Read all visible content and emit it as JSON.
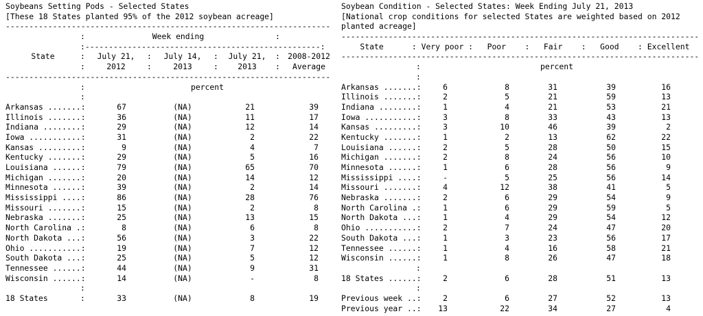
{
  "pods": {
    "title": "Soybeans Setting Pods - Selected States",
    "subtitle": "[These 18 States planted 95% of the 2012 soybean acreage]",
    "group_header": "Week ending",
    "col_state": "State",
    "col1": [
      "July 21,",
      "2012"
    ],
    "col2": [
      "July 14,",
      "2013"
    ],
    "col3": [
      "July 21,",
      "2013"
    ],
    "col4": [
      "2008-2012",
      "Average"
    ],
    "unit": "percent",
    "rows": [
      {
        "state": "Arkansas .......:",
        "v": [
          "67",
          "(NA)",
          "21",
          "39"
        ]
      },
      {
        "state": "Illinois .......:",
        "v": [
          "36",
          "(NA)",
          "11",
          "17"
        ]
      },
      {
        "state": "Indiana ........:",
        "v": [
          "29",
          "(NA)",
          "12",
          "14"
        ]
      },
      {
        "state": "Iowa ...........:",
        "v": [
          "31",
          "(NA)",
          "2",
          "22"
        ]
      },
      {
        "state": "Kansas .........:",
        "v": [
          "9",
          "(NA)",
          "4",
          "7"
        ]
      },
      {
        "state": "Kentucky .......:",
        "v": [
          "29",
          "(NA)",
          "5",
          "16"
        ]
      },
      {
        "state": "Louisiana ......:",
        "v": [
          "79",
          "(NA)",
          "65",
          "70"
        ]
      },
      {
        "state": "Michigan .......:",
        "v": [
          "20",
          "(NA)",
          "14",
          "12"
        ]
      },
      {
        "state": "Minnesota ......:",
        "v": [
          "39",
          "(NA)",
          "2",
          "14"
        ]
      },
      {
        "state": "Mississippi ....:",
        "v": [
          "86",
          "(NA)",
          "28",
          "76"
        ]
      },
      {
        "state": "Missouri .......:",
        "v": [
          "15",
          "(NA)",
          "2",
          "8"
        ]
      },
      {
        "state": "Nebraska .......:",
        "v": [
          "25",
          "(NA)",
          "13",
          "15"
        ]
      },
      {
        "state": "North Carolina .:",
        "v": [
          "8",
          "(NA)",
          "6",
          "8"
        ]
      },
      {
        "state": "North Dakota ...:",
        "v": [
          "56",
          "(NA)",
          "3",
          "22"
        ]
      },
      {
        "state": "Ohio ...........:",
        "v": [
          "19",
          "(NA)",
          "7",
          "12"
        ]
      },
      {
        "state": "South Dakota ...:",
        "v": [
          "25",
          "(NA)",
          "5",
          "12"
        ]
      },
      {
        "state": "Tennessee ......:",
        "v": [
          "44",
          "(NA)",
          "9",
          "31"
        ]
      },
      {
        "state": "Wisconsin ......:",
        "v": [
          "14",
          "(NA)",
          "-",
          "8"
        ]
      }
    ],
    "total": {
      "state": "18 States",
      "v": [
        "33",
        "(NA)",
        "8",
        "19"
      ]
    }
  },
  "condition": {
    "title": "Soybean Condition - Selected States: Week Ending July 21, 2013",
    "subtitle": "[National crop conditions for selected States are weighted based on 2012 planted acreage]",
    "header": "    State      : Very poor :   Poor    :   Fair    :   Good    : Excellent",
    "unit": "percent",
    "rows": [
      {
        "state": "Arkansas .......:",
        "v": [
          "6",
          "8",
          "31",
          "39",
          "16"
        ]
      },
      {
        "state": "Illinois .......:",
        "v": [
          "2",
          "5",
          "21",
          "59",
          "13"
        ]
      },
      {
        "state": "Indiana ........:",
        "v": [
          "1",
          "4",
          "21",
          "53",
          "21"
        ]
      },
      {
        "state": "Iowa ...........:",
        "v": [
          "3",
          "8",
          "33",
          "43",
          "13"
        ]
      },
      {
        "state": "Kansas .........:",
        "v": [
          "3",
          "10",
          "46",
          "39",
          "2"
        ]
      },
      {
        "state": "Kentucky .......:",
        "v": [
          "1",
          "2",
          "13",
          "62",
          "22"
        ]
      },
      {
        "state": "Louisiana ......:",
        "v": [
          "2",
          "5",
          "28",
          "50",
          "15"
        ]
      },
      {
        "state": "Michigan .......:",
        "v": [
          "2",
          "8",
          "24",
          "56",
          "10"
        ]
      },
      {
        "state": "Minnesota ......:",
        "v": [
          "1",
          "6",
          "28",
          "56",
          "9"
        ]
      },
      {
        "state": "Mississippi ....:",
        "v": [
          "-",
          "5",
          "25",
          "56",
          "14"
        ]
      },
      {
        "state": "Missouri .......:",
        "v": [
          "4",
          "12",
          "38",
          "41",
          "5"
        ]
      },
      {
        "state": "Nebraska .......:",
        "v": [
          "2",
          "6",
          "29",
          "54",
          "9"
        ]
      },
      {
        "state": "North Carolina .:",
        "v": [
          "1",
          "6",
          "29",
          "59",
          "5"
        ]
      },
      {
        "state": "North Dakota ...:",
        "v": [
          "1",
          "4",
          "29",
          "54",
          "12"
        ]
      },
      {
        "state": "Ohio ...........:",
        "v": [
          "2",
          "7",
          "24",
          "47",
          "20"
        ]
      },
      {
        "state": "South Dakota ...:",
        "v": [
          "1",
          "3",
          "23",
          "56",
          "17"
        ]
      },
      {
        "state": "Tennessee ......:",
        "v": [
          "1",
          "4",
          "16",
          "58",
          "21"
        ]
      },
      {
        "state": "Wisconsin ......:",
        "v": [
          "1",
          "8",
          "26",
          "47",
          "18"
        ]
      }
    ],
    "totals": [
      {
        "state": "18 States ......:",
        "v": [
          "2",
          "6",
          "28",
          "51",
          "13"
        ]
      },
      {
        "state": "Previous week ..:",
        "v": [
          "2",
          "6",
          "27",
          "52",
          "13"
        ]
      },
      {
        "state": "Previous year ..:",
        "v": [
          "13",
          "22",
          "34",
          "27",
          "4"
        ]
      }
    ]
  }
}
